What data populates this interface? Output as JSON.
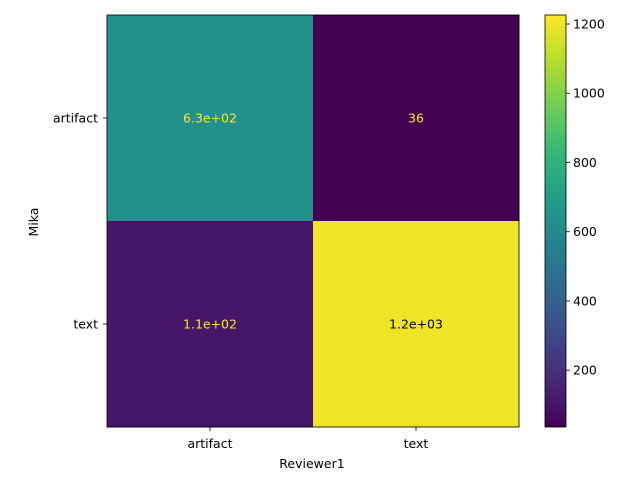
{
  "chart_data": {
    "type": "heatmap",
    "title": "",
    "xlabel": "Reviewer1",
    "ylabel": "Mika",
    "x_categories": [
      "artifact",
      "text"
    ],
    "y_categories": [
      "artifact",
      "text"
    ],
    "matrix": [
      [
        630,
        36
      ],
      [
        110,
        1200
      ]
    ],
    "cell_labels": [
      [
        "6.3e+02",
        "36"
      ],
      [
        "1.1e+02",
        "1.2e+03"
      ]
    ],
    "colormap": "viridis",
    "color_range": [
      36,
      1226
    ],
    "colorbar_ticks": [
      200,
      400,
      600,
      800,
      1000,
      1200
    ],
    "colorbar_tick_labels": [
      "200",
      "400",
      "600",
      "800",
      "1000",
      "1200"
    ],
    "text_color_light": "#fde725",
    "text_color_dark": "#000000",
    "grid": false
  }
}
